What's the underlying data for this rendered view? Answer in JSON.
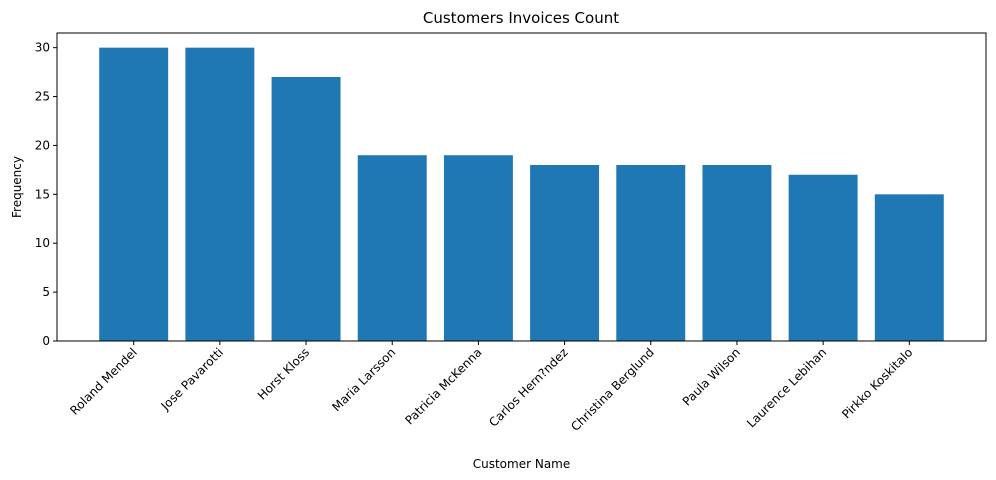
{
  "chart_data": {
    "type": "bar",
    "title": "Customers Invoices Count",
    "xlabel": "Customer Name",
    "ylabel": "Frequency",
    "categories": [
      "Roland Mendel",
      "Jose Pavarotti",
      "Horst Kloss",
      "Maria Larsson",
      "Patricia McKenna",
      "Carlos Hern?ndez",
      "Christina Berglund",
      "Paula Wilson",
      "Laurence Lebihan",
      "Pirkko Koskitalo"
    ],
    "values": [
      30,
      30,
      27,
      19,
      19,
      18,
      18,
      18,
      17,
      15
    ],
    "ylim": [
      0,
      31.5
    ],
    "yticks": [
      0,
      5,
      10,
      15,
      20,
      25,
      30
    ],
    "bar_color": "#1f77b4",
    "grid": false,
    "legend": "none"
  }
}
